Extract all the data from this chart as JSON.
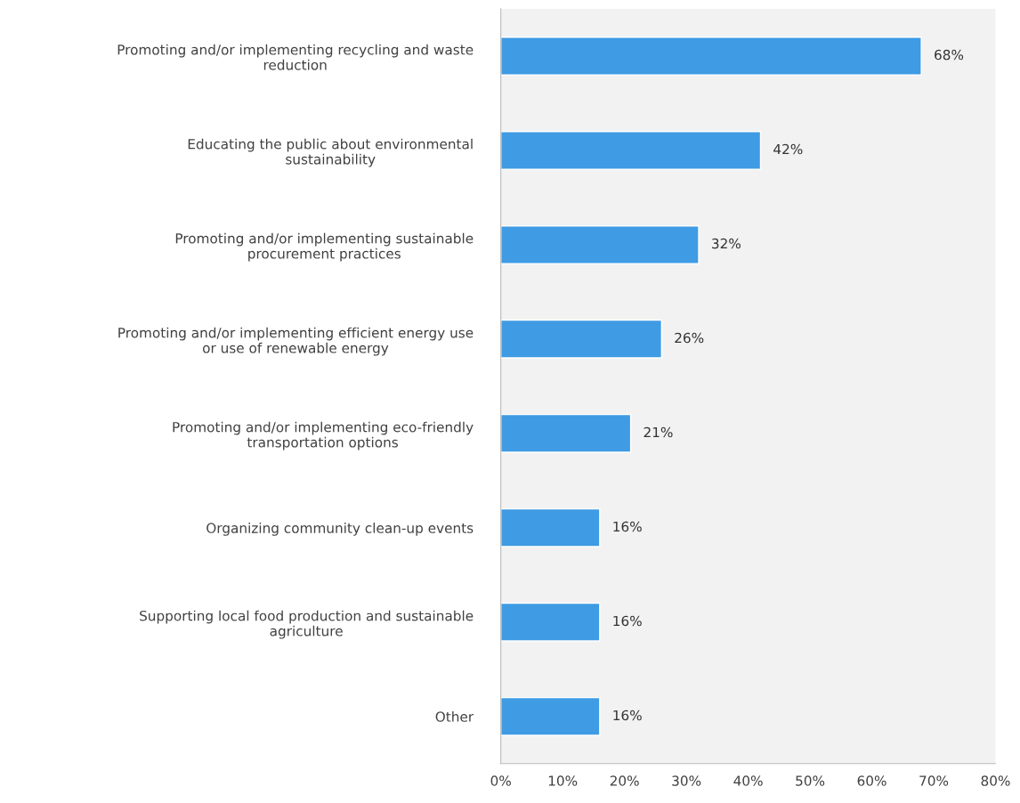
{
  "chart_data": {
    "type": "bar",
    "orientation": "horizontal",
    "categories": [
      "Promoting and/or implementing recycling and waste\nreduction",
      "Educating the public about environmental\nsustainability",
      "Promoting and/or implementing sustainable\nprocurement practices",
      "Promoting and/or implementing efficient energy use\nor use of renewable energy",
      "Promoting and/or implementing eco-friendly\ntransportation options",
      "Organizing community clean-up events",
      "Supporting local food production and sustainable\nagriculture",
      "Other"
    ],
    "values": [
      68,
      42,
      32,
      26,
      21,
      16,
      16,
      16
    ],
    "value_labels": [
      "68%",
      "42%",
      "32%",
      "26%",
      "21%",
      "16%",
      "16%",
      "16%"
    ],
    "color": "#3f9be3",
    "xlim": [
      0,
      80
    ],
    "xticks": [
      {
        "value": 0,
        "label": "0%"
      },
      {
        "value": 10,
        "label": "10%"
      },
      {
        "value": 20,
        "label": "20%"
      },
      {
        "value": 30,
        "label": "30%"
      },
      {
        "value": 40,
        "label": "40%"
      },
      {
        "value": 50,
        "label": "50%"
      },
      {
        "value": 60,
        "label": "60%"
      },
      {
        "value": 70,
        "label": "70%"
      },
      {
        "value": 80,
        "label": "80%"
      }
    ],
    "grid": false,
    "legend": false
  }
}
